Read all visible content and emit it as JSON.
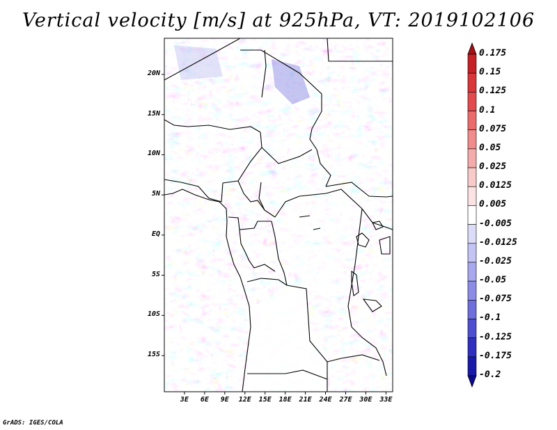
{
  "title": "Vertical velocity [m/s] at 925hPa, VT: 2019102106",
  "credit": "GrADS: IGES/COLA",
  "map": {
    "field": "vertical velocity",
    "level": "925hPa",
    "lon_range": [
      0,
      34
    ],
    "lat_range": [
      -19.5,
      24.5
    ],
    "lat_ticks": [
      {
        "value": 20,
        "label": "20N"
      },
      {
        "value": 15,
        "label": "15N"
      },
      {
        "value": 10,
        "label": "10N"
      },
      {
        "value": 5,
        "label": "5N"
      },
      {
        "value": 0,
        "label": "EQ"
      },
      {
        "value": -5,
        "label": "5S"
      },
      {
        "value": -10,
        "label": "10S"
      },
      {
        "value": -15,
        "label": "15S"
      }
    ],
    "lon_ticks": [
      {
        "value": 3,
        "label": "3E"
      },
      {
        "value": 6,
        "label": "6E"
      },
      {
        "value": 9,
        "label": "9E"
      },
      {
        "value": 12,
        "label": "12E"
      },
      {
        "value": 15,
        "label": "15E"
      },
      {
        "value": 18,
        "label": "18E"
      },
      {
        "value": 21,
        "label": "21E"
      },
      {
        "value": 24,
        "label": "24E"
      },
      {
        "value": 27,
        "label": "27E"
      },
      {
        "value": 30,
        "label": "30E"
      },
      {
        "value": 33,
        "label": "33E"
      }
    ]
  },
  "colorbar": {
    "levels": [
      "0.175",
      "0.15",
      "0.125",
      "0.1",
      "0.075",
      "0.05",
      "0.025",
      "0.0125",
      "0.005",
      "-0.005",
      "-0.0125",
      "-0.025",
      "-0.05",
      "-0.075",
      "-0.1",
      "-0.125",
      "-0.175",
      "-0.2"
    ],
    "colors": [
      "#a50f15",
      "#c62127",
      "#d9363a",
      "#e34a4e",
      "#eb6b6d",
      "#f08c8c",
      "#f4abab",
      "#f8caca",
      "#fbe3e3",
      "#ffffff",
      "#dcdcf8",
      "#c4c4f4",
      "#a8a8ee",
      "#8c8ce6",
      "#6e6edc",
      "#4e4ed0",
      "#3030c0",
      "#1a1aa8",
      "#0c0c90"
    ]
  }
}
